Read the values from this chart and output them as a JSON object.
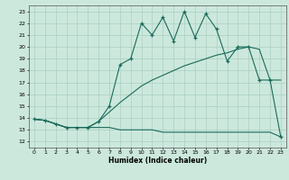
{
  "xlabel": "Humidex (Indice chaleur)",
  "bg_color": "#cce8dd",
  "grid_color": "#aacfbf",
  "line_color": "#1a6b5a",
  "ylim": [
    11.5,
    23.5
  ],
  "xlim": [
    -0.5,
    23.5
  ],
  "yticks": [
    12,
    13,
    14,
    15,
    16,
    17,
    18,
    19,
    20,
    21,
    22,
    23
  ],
  "xticks": [
    0,
    1,
    2,
    3,
    4,
    5,
    6,
    7,
    8,
    9,
    10,
    11,
    12,
    13,
    14,
    15,
    16,
    17,
    18,
    19,
    20,
    21,
    22,
    23
  ],
  "line1_x": [
    0,
    1,
    2,
    3,
    4,
    5,
    6,
    7,
    8,
    9,
    10,
    11,
    12,
    13,
    14,
    15,
    16,
    17,
    18,
    19,
    20,
    21,
    22,
    23
  ],
  "line1_y": [
    13.9,
    13.8,
    13.5,
    13.2,
    13.2,
    13.2,
    13.2,
    13.2,
    13.0,
    13.0,
    13.0,
    13.0,
    12.8,
    12.8,
    12.8,
    12.8,
    12.8,
    12.8,
    12.8,
    12.8,
    12.8,
    12.8,
    12.8,
    12.4
  ],
  "line2_x": [
    0,
    1,
    2,
    3,
    4,
    5,
    6,
    7,
    8,
    9,
    10,
    11,
    12,
    13,
    14,
    15,
    16,
    17,
    18,
    19,
    20,
    21,
    22,
    23
  ],
  "line2_y": [
    13.9,
    13.8,
    13.5,
    13.2,
    13.2,
    13.2,
    13.7,
    14.5,
    15.3,
    16.0,
    16.7,
    17.2,
    17.6,
    18.0,
    18.4,
    18.7,
    19.0,
    19.3,
    19.5,
    19.8,
    20.0,
    19.8,
    17.2,
    17.2
  ],
  "line3_x": [
    0,
    1,
    2,
    3,
    4,
    5,
    6,
    7,
    8,
    9,
    10,
    11,
    12,
    13,
    14,
    15,
    16,
    17,
    18,
    19,
    20,
    21,
    22,
    23
  ],
  "line3_y": [
    13.9,
    13.8,
    13.5,
    13.2,
    13.2,
    13.2,
    13.7,
    15.0,
    18.5,
    19.0,
    22.0,
    21.0,
    22.5,
    20.5,
    23.0,
    20.8,
    22.8,
    21.5,
    18.8,
    20.0,
    20.0,
    17.2,
    17.2,
    12.4
  ]
}
